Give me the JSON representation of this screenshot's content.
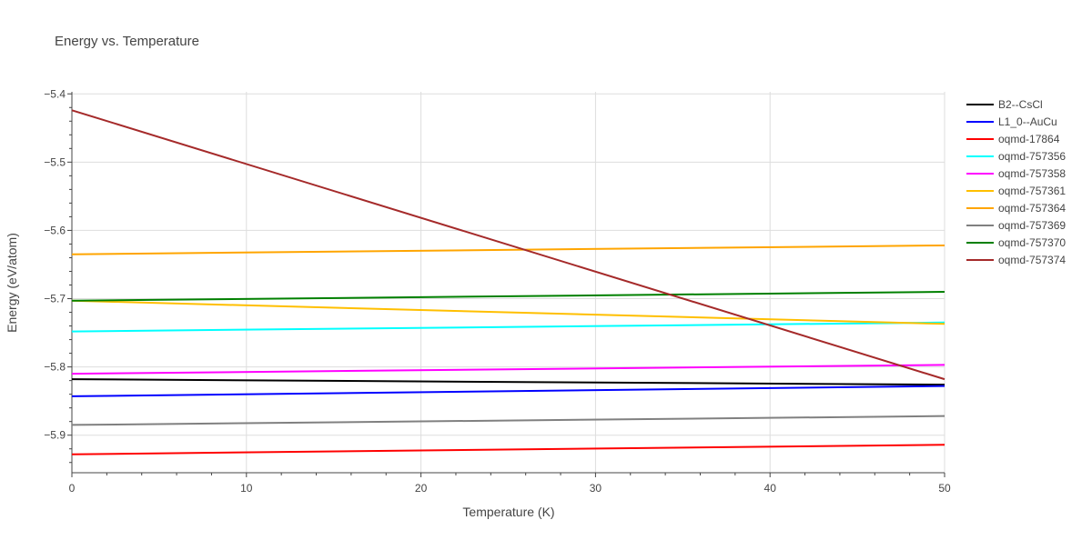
{
  "chart_data": {
    "type": "line",
    "title": "Energy vs. Temperature",
    "xlabel": "Temperature (K)",
    "ylabel": "Energy (eV/atom)",
    "xlim": [
      0,
      50
    ],
    "ylim": [
      -5.955,
      -5.397
    ],
    "x_ticks": [
      0,
      10,
      20,
      30,
      40,
      50
    ],
    "x_tick_labels": [
      "0",
      "10",
      "20",
      "30",
      "40",
      "50"
    ],
    "y_ticks": [
      -5.9,
      -5.8,
      -5.7,
      -5.6,
      -5.5,
      -5.4
    ],
    "y_tick_labels": [
      "−5.9",
      "−5.8",
      "−5.7",
      "−5.6",
      "−5.5",
      "−5.4"
    ],
    "x_minor_step": 2,
    "y_minor_step": 0.02,
    "grid": true,
    "legend_position": "right",
    "series": [
      {
        "name": "B2--CsCl",
        "color": "#000000",
        "x": [
          0,
          50
        ],
        "y": [
          -5.818,
          -5.826
        ]
      },
      {
        "name": "L1_0--AuCu",
        "color": "#0000ff",
        "x": [
          0,
          50
        ],
        "y": [
          -5.843,
          -5.828
        ]
      },
      {
        "name": "oqmd-17864",
        "color": "#ff0000",
        "x": [
          0,
          50
        ],
        "y": [
          -5.928,
          -5.914
        ]
      },
      {
        "name": "oqmd-757356",
        "color": "#00ffff",
        "x": [
          0,
          50
        ],
        "y": [
          -5.748,
          -5.735
        ]
      },
      {
        "name": "oqmd-757358",
        "color": "#ff00ff",
        "x": [
          0,
          50
        ],
        "y": [
          -5.81,
          -5.797
        ]
      },
      {
        "name": "oqmd-757361",
        "color": "#ffbf00",
        "x": [
          0,
          50
        ],
        "y": [
          -5.703,
          -5.737
        ]
      },
      {
        "name": "oqmd-757364",
        "color": "#ffa500",
        "x": [
          0,
          50
        ],
        "y": [
          -5.635,
          -5.622
        ]
      },
      {
        "name": "oqmd-757369",
        "color": "#808080",
        "x": [
          0,
          50
        ],
        "y": [
          -5.885,
          -5.872
        ]
      },
      {
        "name": "oqmd-757370",
        "color": "#008000",
        "x": [
          0,
          50
        ],
        "y": [
          -5.703,
          -5.69
        ]
      },
      {
        "name": "oqmd-757374",
        "color": "#a52a2a",
        "x": [
          0,
          50
        ],
        "y": [
          -5.424,
          -5.818
        ]
      }
    ]
  }
}
